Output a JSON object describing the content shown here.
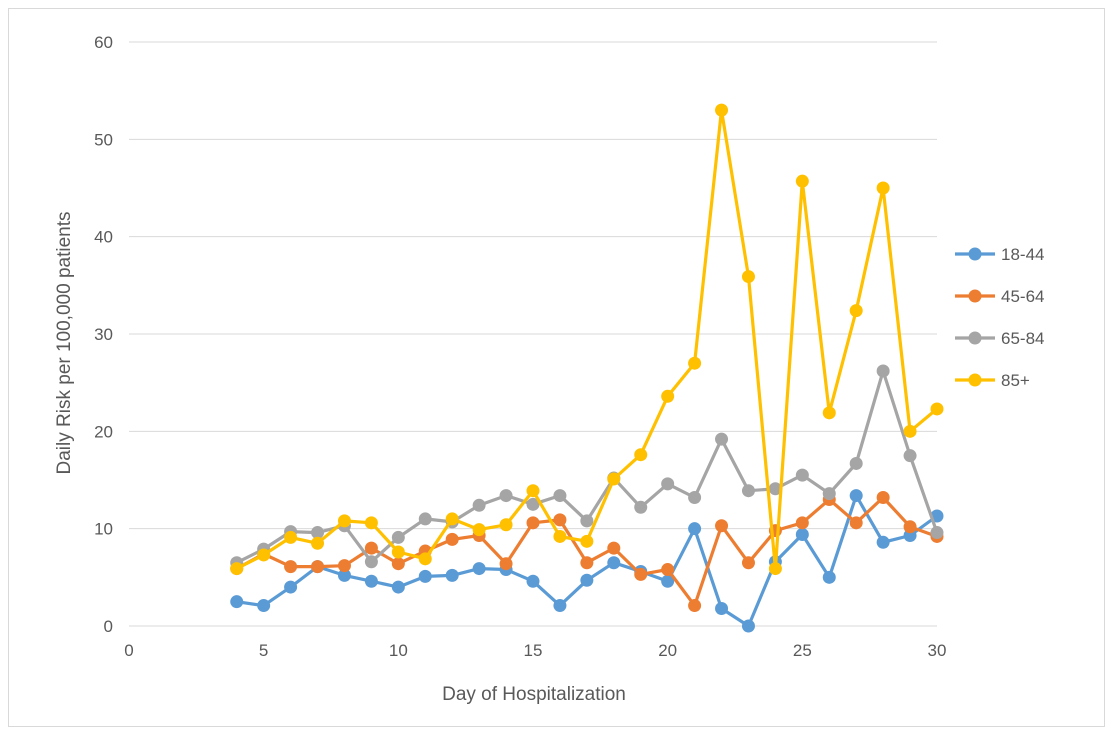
{
  "chart_data": {
    "type": "line",
    "title": "",
    "xlabel": "Day of Hospitalization",
    "ylabel": "Daily Risk per 100,000 patients",
    "xlim": [
      0,
      30
    ],
    "ylim": [
      0,
      60
    ],
    "xticks": [
      0,
      5,
      10,
      15,
      20,
      25,
      30
    ],
    "yticks": [
      0,
      10,
      20,
      30,
      40,
      50,
      60
    ],
    "grid": "horizontal",
    "legend_position": "right",
    "x": [
      4,
      5,
      6,
      7,
      8,
      9,
      10,
      11,
      12,
      13,
      14,
      15,
      16,
      17,
      18,
      19,
      20,
      21,
      22,
      23,
      24,
      25,
      26,
      27,
      28,
      29,
      30
    ],
    "series": [
      {
        "name": "18-44",
        "color": "#5b9bd5",
        "values": [
          2.5,
          2.1,
          4.0,
          6.1,
          5.2,
          4.6,
          4.0,
          5.1,
          5.2,
          5.9,
          5.8,
          4.6,
          2.1,
          4.7,
          6.5,
          5.6,
          4.6,
          10.0,
          1.8,
          0.0,
          6.6,
          9.4,
          5.0,
          13.4,
          8.6,
          9.3,
          11.3
        ]
      },
      {
        "name": "45-64",
        "color": "#ed7d31",
        "values": [
          5.9,
          7.4,
          6.1,
          6.1,
          6.2,
          8.0,
          6.4,
          7.7,
          8.9,
          9.3,
          6.4,
          10.6,
          10.9,
          6.5,
          8.0,
          5.3,
          5.8,
          2.1,
          10.3,
          6.5,
          9.8,
          10.6,
          13.0,
          10.6,
          13.2,
          10.2,
          9.2
        ]
      },
      {
        "name": "65-84",
        "color": "#a5a5a5",
        "values": [
          6.5,
          7.9,
          9.7,
          9.6,
          10.3,
          6.6,
          9.1,
          11.0,
          10.7,
          12.4,
          13.4,
          12.5,
          13.4,
          10.8,
          15.2,
          12.2,
          14.6,
          13.2,
          19.2,
          13.9,
          14.1,
          15.5,
          13.6,
          16.7,
          26.2,
          17.5,
          9.6
        ]
      },
      {
        "name": "85+",
        "color": "#ffc000",
        "values": [
          5.9,
          7.3,
          9.1,
          8.5,
          10.8,
          10.6,
          7.6,
          6.9,
          11.0,
          9.9,
          10.4,
          13.9,
          9.2,
          8.7,
          15.1,
          17.6,
          23.6,
          27.0,
          53.0,
          35.9,
          5.9,
          45.7,
          21.9,
          32.4,
          45.0,
          20.0,
          22.3
        ]
      }
    ]
  }
}
